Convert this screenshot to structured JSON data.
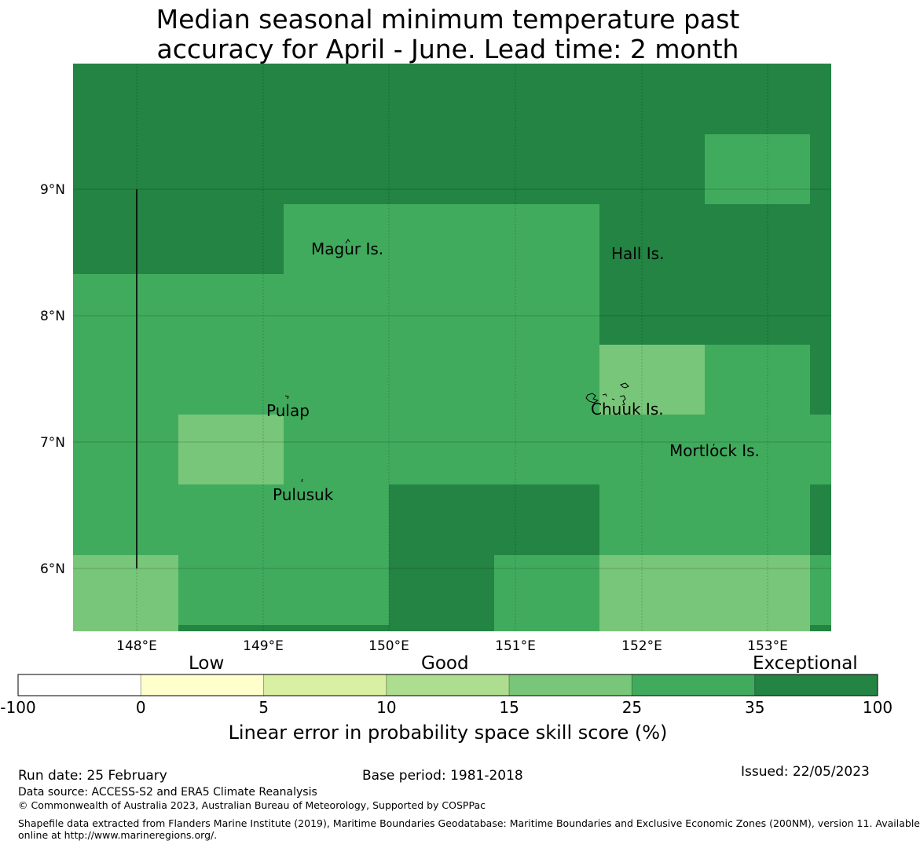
{
  "title": {
    "line1": "Median seasonal minimum temperature past",
    "line2": "accuracy for April - June. Lead time: 2 month"
  },
  "map": {
    "latitude_labels": [
      "9°N",
      "8°N",
      "7°N",
      "6°N"
    ],
    "longitude_labels": [
      "148°E",
      "149°E",
      "150°E",
      "151°E",
      "152°E",
      "153°E"
    ],
    "places": {
      "magur": "Magur Is.",
      "hall": "Hall Is.",
      "pulap": "Pulap",
      "chuuk": "Chuuk Is.",
      "mortlock": "Mortlock Is.",
      "pulusuk": "Pulusuk"
    }
  },
  "legend": {
    "categories": {
      "low": "Low",
      "good": "Good",
      "exceptional": "Exceptional"
    },
    "ticks": [
      "-100",
      "0",
      "5",
      "10",
      "15",
      "25",
      "35",
      "100"
    ],
    "colors": [
      "#ffffff",
      "#ffffcc",
      "#d9f0a3",
      "#addd8e",
      "#78c679",
      "#41ab5d",
      "#238443"
    ],
    "axis_label": "Linear error in probability space skill score (%)"
  },
  "footer": {
    "run_date": "Run date: 25 February",
    "base_period": "Base period: 1981-2018",
    "issued": "Issued: 22/05/2023",
    "data_source": "Data source: ACCESS-S2 and ERA5 Climate Reanalysis",
    "copyright": "© Commonwealth of Australia 2023, Australian Bureau of Meteorology, Supported by COSPPac",
    "shapefile_line1": "Shapefile data extracted from Flanders Marine Institute (2019), Maritime Boundaries Geodatabase: Maritime Boundaries and Exclusive Economic Zones (200NM), version 11. Available",
    "shapefile_line2": "online at http://www.marineregions.org/."
  }
}
